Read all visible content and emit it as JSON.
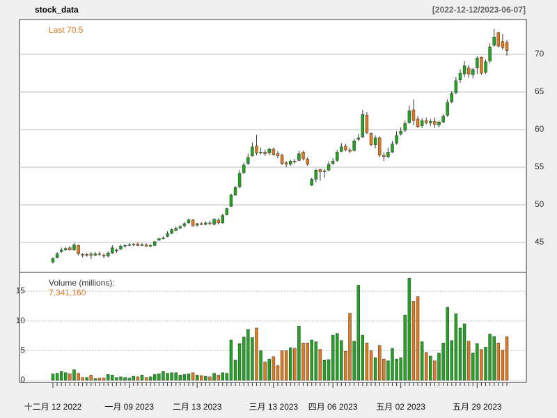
{
  "chart_data": {
    "type": "candlestick",
    "title": "stock_data",
    "date_range": "[2022-12-12/2023-06-07]",
    "last_label": "Last 70.5",
    "volume_title": "Volume (millions):",
    "volume_last_label": "7,341,160",
    "up_color": "#22a322",
    "down_color": "#e07a1f",
    "categories": [
      "十二月 12 2022",
      null,
      null,
      null,
      null,
      null,
      null,
      null,
      null,
      null,
      null,
      null,
      null,
      null,
      null,
      null,
      null,
      null,
      "一月 09 2023",
      null,
      null,
      null,
      null,
      null,
      null,
      null,
      null,
      null,
      null,
      null,
      null,
      null,
      null,
      null,
      "二月 13 2023",
      null,
      null,
      null,
      null,
      null,
      null,
      null,
      null,
      null,
      null,
      null,
      null,
      null,
      null,
      null,
      null,
      null,
      "三月 13 2023",
      null,
      null,
      null,
      null,
      null,
      null,
      null,
      null,
      null,
      null,
      null,
      null,
      null,
      "四月 06 2023",
      null,
      null,
      null,
      null,
      null,
      null,
      null,
      null,
      null,
      null,
      null,
      null,
      null,
      null,
      null,
      "五月 02 2023",
      null,
      null,
      null,
      null,
      null,
      null,
      null,
      null,
      null,
      null,
      null,
      null,
      null,
      null,
      null,
      null,
      null,
      "五月 29 2023",
      null,
      null,
      null,
      null,
      null,
      null,
      null
    ],
    "open": [
      42.4,
      43.0,
      43.8,
      44.0,
      44.3,
      44.0,
      44.6,
      43.4,
      43.3,
      43.5,
      43.3,
      43.5,
      43.3,
      43.2,
      43.6,
      43.9,
      44.1,
      44.5,
      44.6,
      44.7,
      44.8,
      44.6,
      44.7,
      44.5,
      44.6,
      45.3,
      45.5,
      45.8,
      46.2,
      46.6,
      46.9,
      47.2,
      47.6,
      48.0,
      47.3,
      47.5,
      47.4,
      47.6,
      47.4,
      48.0,
      47.6,
      48.7,
      49.8,
      51.3,
      52.4,
      54.3,
      55.5,
      56.5,
      57.8,
      56.9,
      57.0,
      56.9,
      57.4,
      56.8,
      56.6,
      55.6,
      55.4,
      55.8,
      55.9,
      57.0,
      56.1,
      52.6,
      53.4,
      54.7,
      54.4,
      54.6,
      55.5,
      55.9,
      57.1,
      57.8,
      57.3,
      57.2,
      58.7,
      59.0,
      61.9,
      59.5,
      58.0,
      58.9,
      56.6,
      56.4,
      57.0,
      58.2,
      59.4,
      59.9,
      60.9,
      62.6,
      61.4,
      60.5,
      61.2,
      60.9,
      61.1,
      60.6,
      61.0,
      61.9,
      63.7,
      64.9,
      66.6,
      67.4,
      68.2,
      67.3,
      68.2,
      69.6,
      67.6,
      69.1,
      71.2,
      72.9,
      71.7,
      71.6
    ],
    "high": [
      43.0,
      43.7,
      44.3,
      44.4,
      44.5,
      44.9,
      44.7,
      43.6,
      43.6,
      43.7,
      43.7,
      43.8,
      43.6,
      43.8,
      44.6,
      44.2,
      44.7,
      44.8,
      44.9,
      44.9,
      45.0,
      44.9,
      44.9,
      44.8,
      45.2,
      45.6,
      45.8,
      46.5,
      46.9,
      47.1,
      47.3,
      47.7,
      48.2,
      48.1,
      47.6,
      47.7,
      47.8,
      47.9,
      48.2,
      48.2,
      48.8,
      49.6,
      51.5,
      52.5,
      54.6,
      55.6,
      56.8,
      58.3,
      59.3,
      57.6,
      57.3,
      57.6,
      57.6,
      57.1,
      56.8,
      55.8,
      56.0,
      56.1,
      57.2,
      57.2,
      56.3,
      53.6,
      54.8,
      54.8,
      54.8,
      55.8,
      56.2,
      57.3,
      58.2,
      58.1,
      57.6,
      58.8,
      59.4,
      62.6,
      62.3,
      59.6,
      59.2,
      59.1,
      57.0,
      57.6,
      58.5,
      59.8,
      60.3,
      61.2,
      63.2,
      64.0,
      61.8,
      61.5,
      61.6,
      61.4,
      61.6,
      61.2,
      62.1,
      64.0,
      65.1,
      67.0,
      68.0,
      69.1,
      68.6,
      68.2,
      69.8,
      69.7,
      69.3,
      71.5,
      73.4,
      73.0,
      72.7,
      71.9
    ],
    "low": [
      42.2,
      42.9,
      43.6,
      43.9,
      43.9,
      43.9,
      43.3,
      43.0,
      43.1,
      42.8,
      43.2,
      43.2,
      42.9,
      43.0,
      43.5,
      43.6,
      44.0,
      44.3,
      44.5,
      44.5,
      44.5,
      44.5,
      44.4,
      44.4,
      44.5,
      45.2,
      45.4,
      45.7,
      46.1,
      46.5,
      46.8,
      47.0,
      47.5,
      47.1,
      47.1,
      47.3,
      47.3,
      47.3,
      47.3,
      47.4,
      47.5,
      48.6,
      49.7,
      51.2,
      52.2,
      54.1,
      55.3,
      56.4,
      56.6,
      56.7,
      56.5,
      56.6,
      56.5,
      56.2,
      55.3,
      55.0,
      55.2,
      55.5,
      55.8,
      55.9,
      55.2,
      52.5,
      53.0,
      53.2,
      53.6,
      54.5,
      55.3,
      55.7,
      57.0,
      57.1,
      56.9,
      57.1,
      58.5,
      58.9,
      59.4,
      57.8,
      57.5,
      56.3,
      55.8,
      56.2,
      56.9,
      58.0,
      59.2,
      59.7,
      60.8,
      60.6,
      60.2,
      60.2,
      60.7,
      60.5,
      60.2,
      60.3,
      60.9,
      61.7,
      63.5,
      64.7,
      66.2,
      67.0,
      66.9,
      66.8,
      67.4,
      67.3,
      67.4,
      68.8,
      71.0,
      70.9,
      70.6,
      69.8
    ],
    "close": [
      42.9,
      43.5,
      44.0,
      44.2,
      44.0,
      44.7,
      43.5,
      43.3,
      43.4,
      43.3,
      43.5,
      43.4,
      43.2,
      43.6,
      44.3,
      44.0,
      44.5,
      44.6,
      44.7,
      44.8,
      44.6,
      44.7,
      44.5,
      44.6,
      45.1,
      45.5,
      45.6,
      46.2,
      46.7,
      46.9,
      47.1,
      47.5,
      48.0,
      47.2,
      47.5,
      47.4,
      47.6,
      47.5,
      48.1,
      47.6,
      48.6,
      49.5,
      51.3,
      52.3,
      54.2,
      55.3,
      56.3,
      57.7,
      56.9,
      57.0,
      56.8,
      57.4,
      56.7,
      56.5,
      55.5,
      55.4,
      55.8,
      55.7,
      56.8,
      56.1,
      55.4,
      53.4,
      54.6,
      54.4,
      54.5,
      55.4,
      55.8,
      57.0,
      57.7,
      57.3,
      57.1,
      58.5,
      58.9,
      62.0,
      59.6,
      58.0,
      58.9,
      56.6,
      56.4,
      57.0,
      58.1,
      59.2,
      59.8,
      60.8,
      62.5,
      61.2,
      60.4,
      61.2,
      60.9,
      61.1,
      60.7,
      61.0,
      61.8,
      63.6,
      64.8,
      66.5,
      67.5,
      68.5,
      67.4,
      68.0,
      69.5,
      67.5,
      69.0,
      71.0,
      72.3,
      71.1,
      70.9,
      70.5
    ],
    "volume": [
      1.1,
      1.2,
      1.5,
      1.3,
      1.1,
      1.8,
      1.2,
      0.5,
      0.5,
      0.9,
      0.3,
      0.4,
      0.4,
      1.0,
      0.9,
      0.5,
      0.6,
      0.5,
      0.4,
      0.7,
      0.6,
      0.9,
      0.5,
      0.6,
      1.0,
      1.1,
      1.5,
      1.2,
      1.3,
      1.3,
      0.9,
      1.0,
      1.1,
      1.3,
      0.9,
      0.8,
      0.7,
      0.6,
      1.2,
      0.9,
      1.3,
      1.2,
      6.8,
      3.4,
      6.2,
      7.3,
      8.6,
      7.2,
      8.8,
      5.0,
      3.1,
      3.6,
      4.0,
      2.5,
      5.0,
      5.0,
      5.5,
      5.4,
      9.1,
      6.3,
      6.3,
      6.8,
      6.5,
      5.2,
      3.4,
      3.5,
      7.6,
      7.9,
      6.7,
      4.9,
      11.3,
      6.6,
      16.0,
      7.6,
      6.3,
      5.0,
      3.8,
      5.9,
      3.6,
      3.3,
      5.4,
      3.6,
      3.8,
      11.0,
      17.2,
      13.3,
      14.1,
      6.5,
      4.7,
      4.1,
      3.3,
      4.6,
      6.3,
      12.3,
      6.7,
      11.2,
      8.8,
      9.5,
      6.6,
      4.6,
      6.2,
      5.2,
      5.6,
      7.8,
      7.4,
      6.3,
      5.1,
      7.34116
    ],
    "ylim": [
      41.02,
      74.63
    ],
    "yticks": [
      45,
      50,
      55,
      60,
      65,
      70
    ],
    "vol_ylim": [
      -0.35,
      18.16
    ],
    "vol_yticks": [
      0,
      5,
      10,
      15
    ]
  }
}
